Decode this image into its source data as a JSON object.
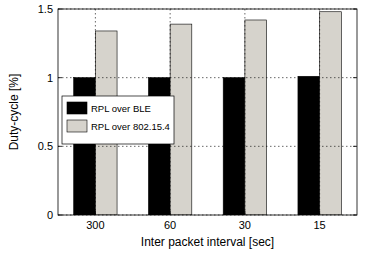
{
  "chart_data": {
    "type": "bar",
    "x_label": "Inter packet interval [sec]",
    "y_label": "Duty-cycle [%]",
    "categories": [
      "300",
      "60",
      "30",
      "15"
    ],
    "series": [
      {
        "name": "RPL over BLE",
        "color": "#000000",
        "values": [
          1.0,
          1.0,
          1.0,
          1.01
        ]
      },
      {
        "name": "RPL over 802.15.4",
        "color": "#d6d3cc",
        "values": [
          1.34,
          1.39,
          1.42,
          1.48
        ]
      }
    ],
    "ylim": [
      0,
      1.5
    ],
    "yticks": [
      0,
      0.5,
      1,
      1.5
    ],
    "grid": true,
    "legend": "left"
  }
}
